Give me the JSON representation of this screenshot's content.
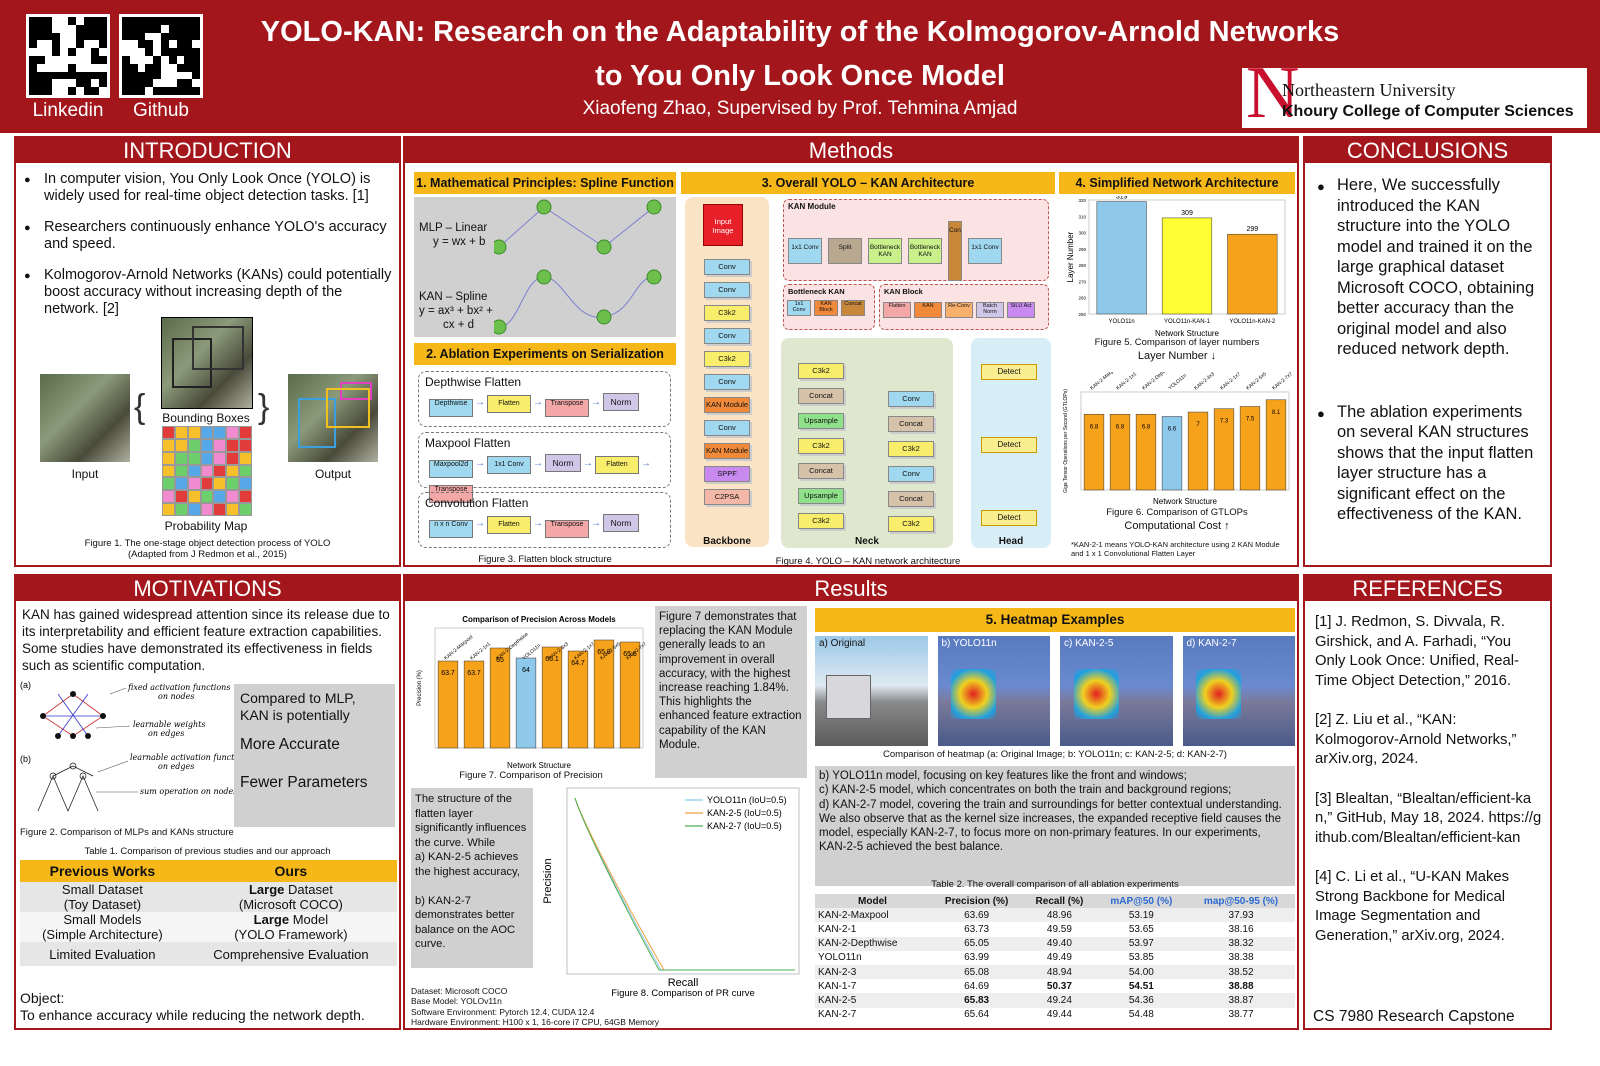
{
  "header": {
    "title_line1": "YOLO-KAN: Research on the Adaptability of the Kolmogorov-Arnold Networks",
    "title_line2": "to You Only Look Once Model",
    "author": "Xiaofeng Zhao, Supervised by Prof. Tehmina Amjad",
    "qr1_label": "Linkedin",
    "qr2_label": "Github",
    "uni_name": "Northeastern University",
    "college": "Khoury College of Computer Sciences",
    "logo_letter": "N"
  },
  "intro": {
    "heading": "INTRODUCTION",
    "bullets": [
      "In computer vision, You Only Look Once (YOLO) is widely used for real-time object detection tasks. [1]",
      "Researchers continuously enhance YOLO's accuracy and speed.",
      "Kolmogorov-Arnold Networks (KANs) could potentially boost accuracy without increasing depth of the network. [2]"
    ],
    "fig_input": "Input",
    "fig_bbox": "Bounding Boxes",
    "fig_output": "Output",
    "fig_prob": "Probability Map",
    "caption1": "Figure 1. The one-stage object detection process of YOLO",
    "caption2": "(Adapted from J Redmon et al., 2015)"
  },
  "methods": {
    "heading": "Methods",
    "s1": "1. Mathematical Principles: Spline Function",
    "mlp1": "MLP – Linear",
    "mlp2": "y = wx + b",
    "kan1": "KAN – Spline",
    "kan2": "y = ax³ + bx² +",
    "kan3": "cx + d",
    "s2": "2. Ablation Experiments on Serialization",
    "f1": "Depthwise Flatten",
    "f2": "Maxpool Flatten",
    "f3": "Convolution Flatten",
    "f1chips": [
      "Depthwise",
      "Flatten",
      "Transpose",
      "Norm"
    ],
    "f2chips": [
      "Maxpool2d",
      "1x1 Conv",
      "Norm",
      "Flatten",
      "Transpose"
    ],
    "f3chips": [
      "n x n Conv",
      "Flatten",
      "Transpose",
      "Norm"
    ],
    "fig3": "Figure 3. Flatten block structure",
    "s3": "3. Overall YOLO – KAN Architecture",
    "kan_module": "KAN Module",
    "bottleneck_kan": "Bottleneck KAN",
    "kan_block": "KAN Block",
    "backbone": "Backbone",
    "neck": "Neck",
    "head": "Head",
    "input_image": "Input Image",
    "bb_chips": [
      "Conv",
      "Conv",
      "C3k2",
      "Conv",
      "C3k2",
      "Conv",
      "KAN Module",
      "Conv",
      "KAN Module",
      "SPPF",
      "C2PSA"
    ],
    "neck1": [
      "C3k2",
      "Concat",
      "Upsample",
      "C3k2",
      "Concat",
      "Upsample",
      "C3k2"
    ],
    "neck2": [
      "Conv",
      "Concat",
      "C3k2",
      "Conv",
      "Concat",
      "C3k2"
    ],
    "detect": "Detect",
    "kan_chips": [
      "1x1 Conv",
      "Split",
      "Bottleneck KAN",
      "Bottleneck KAN",
      "Concat",
      "1x1 Conv"
    ],
    "bkan_chips": [
      "1x1 Conv",
      "KAN Block",
      "Concat"
    ],
    "kblock_chips": [
      "Flatten",
      "KAN",
      "Re-Conv",
      "Batch Norm",
      "SiLU Act"
    ],
    "fig4": "Figure 4. YOLO – KAN network architecture",
    "s4": "4. Simplified Network Architecture",
    "fig5": "Figure 5. Comparison of layer numbers",
    "fig5b": "Layer Number ↓",
    "fig6": "Figure 6. Comparison of GTLOPs",
    "fig6b": "Computational Cost ↑",
    "xlab": "Network Structure",
    "ylab5": "Layer Number",
    "ylab6": "Giga Tensor Operations per Second (GTLOPs)",
    "note1": "*KAN-2-1 means YOLO-KAN architecture using 2 KAN Module",
    "note2": "and 1 x 1 Convolutional Flatten Layer"
  },
  "conclusions": {
    "heading": "CONCLUSIONS",
    "b1": "Here, We successfully introduced the KAN structure into the YOLO model and trained it on the large graphical dataset Microsoft COCO, obtaining better accuracy than the original model and also reduced network depth.",
    "b2": "The ablation experiments on several KAN structures shows that the input flatten layer structure has a significant effect on the effectiveness of the KAN."
  },
  "motivations": {
    "heading": "MOTIVATIONS",
    "text": "KAN has gained widespread attention since its release due to its interpretability and efficient feature extraction capabilities. Some studies have demonstrated its effectiveness in fields such as scientific computation.",
    "a": "(a)",
    "b": "(b)",
    "fa1": "fixed activation functions",
    "fa2": "on nodes",
    "lw1": "learnable weights",
    "lw2": "on edges",
    "la1": "learnable activation functions",
    "la2": "on edges",
    "so": "sum operation on nodes",
    "compare1": "Compared to MLP,",
    "compare2": "KAN is potentially",
    "compare3": "More Accurate",
    "compare4": "Fewer Parameters",
    "fig2": "Figure 2. Comparison of MLPs and KANs structure",
    "table1cap": "Table 1. Comparison of previous studies and our approach",
    "th": [
      "Previous Works",
      "Ours"
    ],
    "rows": [
      [
        "Small Dataset",
        "(Toy Dataset)",
        "Large",
        "Dataset",
        "(Microsoft COCO)"
      ],
      [
        "Small Models",
        "(Simple Architecture)",
        "Large",
        "Model",
        "(YOLO Framework)"
      ],
      [
        "Limited Evaluation",
        "",
        "",
        "Comprehensive Evaluation",
        ""
      ]
    ],
    "object": "Object:",
    "object_text": "To enhance accuracy while reducing the network depth."
  },
  "results": {
    "heading": "Results",
    "fig7title": "Comparison of Precision Across Models",
    "fig7": "Figure 7. Comparison of Precision",
    "fig7text": "Figure 7 demonstrates that replacing the KAN Module generally leads to an improvement in overall accuracy, with the highest increase reaching 1.84%. This highlights the enhanced feature extraction capability of the KAN Module.",
    "ylab7": "Precision (%)",
    "xlab7": "Network Structure",
    "pr_text": "The structure of the flatten layer significantly influences the curve. While\na) KAN-2-5 achieves the highest accuracy,\n\nb) KAN-2-7 demonstrates better balance on the AOC curve.",
    "pr_legend": [
      "YOLO11n (IoU=0.5)",
      "KAN-2-5 (IoU=0.5)",
      "KAN-2-7 (IoU=0.5)"
    ],
    "pr_x": "Recall",
    "pr_y": "Precision",
    "fig8": "Figure 8. Comparison of PR curve",
    "env1": "Dataset: Microsoft COCO",
    "env2": "Base Model: YOLOv11n",
    "env3": "Software Environment: Pytorch 12.4, CUDA 12.4",
    "env4": "Hardware Environment: H100 x 1, 16-core i7 CPU, 64GB Memory",
    "s5": "5. Heatmap Examples",
    "hm": [
      "a) Original",
      "b) YOLO11n",
      "c) KAN-2-5",
      "d) KAN-2-7"
    ],
    "hmcap": "Comparison of heatmap (a: Original Image; b: YOLO11n; c: KAN-2-5; d: KAN-2-7)",
    "hmtext": "b) YOLO11n model, focusing on key features like the front and windows;\nc) KAN-2-5 model, which concentrates on both the train and background regions;\nd) KAN-2-7 model, covering the train and surroundings for better contextual understanding.\nWe also observe that as the kernel size increases, the expanded receptive field causes the model, especially KAN-2-7, to focus more on non-primary features. In our experiments, KAN-2-5 achieved the best balance.",
    "table2cap": "Table 2. The overall comparison of all ablation experiments",
    "t2head": [
      "Model",
      "Precision (%)",
      "Recall (%)",
      "mAP@50 (%)",
      "map@50-95 (%)"
    ],
    "t2rows": [
      [
        "KAN-2-Maxpool",
        "63.69",
        "48.96",
        "53.19",
        "37.93"
      ],
      [
        "KAN-2-1",
        "63.73",
        "49.59",
        "53.65",
        "38.16"
      ],
      [
        "KAN-2-Depthwise",
        "65.05",
        "49.40",
        "53.97",
        "38.32"
      ],
      [
        "YOLO11n",
        "63.99",
        "49.49",
        "53.85",
        "38.38"
      ],
      [
        "KAN-2-3",
        "65.08",
        "48.94",
        "54.00",
        "38.52"
      ],
      [
        "KAN-1-7",
        "64.69",
        "50.37",
        "54.51",
        "38.88"
      ],
      [
        "KAN-2-5",
        "65.83",
        "49.24",
        "54.36",
        "38.87"
      ],
      [
        "KAN-2-7",
        "65.64",
        "49.44",
        "54.48",
        "38.77"
      ]
    ]
  },
  "references": {
    "heading": "REFERENCES",
    "r": [
      "[1] J. Redmon, S. Divvala, R. Girshick, and A. Farhadi, “You Only Look Once: Unified, Real-Time Object Detection,” 2016.",
      "[2] Z. Liu et al., “KAN: Kolmogorov-Arnold Networks,” arXiv.org, 2024.",
      "[3] Blealtan, “Blealtan/efficient-kan,” GitHub, May 18, 2024. https://github.com/Blealtan/efficient-kan",
      "[4] C. Li et al., “U-KAN Makes Strong Backbone for Medical Image Segmentation and Generation,” arXiv.org, 2024."
    ],
    "course": "CS 7980 Research Capstone"
  },
  "chart_data": [
    {
      "type": "bar",
      "title": "",
      "categories": [
        "YOLO11n",
        "YOLO11n-KAN-1",
        "YOLO11n-KAN-2"
      ],
      "values": [
        319,
        309,
        299
      ],
      "colors": [
        "#8ec9ec",
        "#ffff33",
        "#f7a21b"
      ],
      "xlabel": "Network Structure",
      "ylabel": "Layer Number",
      "ylim": [
        250,
        320
      ]
    },
    {
      "type": "bar",
      "title": "",
      "categories": [
        "KAN-2-Maxpool",
        "KAN-2-1x1",
        "KAN-2-Depthwise",
        "YOLO11n",
        "KAN-2-3x3",
        "KAN-2-1x7",
        "KAN-2-5x5",
        "KAN-2-7x7"
      ],
      "values": [
        6.8,
        6.8,
        6.8,
        6.6,
        7.0,
        7.3,
        7.5,
        8.1
      ],
      "xlabel": "Network Structure",
      "ylabel": "Giga Tensor Operations per Second (GTLOPs)"
    },
    {
      "type": "bar",
      "title": "Comparison of Precision Across Models",
      "categories": [
        "KAN-2-Maxpool",
        "KAN-2-1x1",
        "KAN-2-Depthwise",
        "YOLO11n",
        "KAN-2-3x3",
        "KAN-2-1x7",
        "KAN-2-5x5",
        "KAN-2-7x7"
      ],
      "values": [
        63.7,
        63.7,
        65.0,
        64.0,
        65.1,
        64.7,
        65.8,
        65.6
      ],
      "xlabel": "Network Structure",
      "ylabel": "Precision (%)"
    },
    {
      "type": "line",
      "title": "",
      "series": [
        {
          "name": "YOLO11n (IoU=0.5)",
          "color": "#8ec9ec"
        },
        {
          "name": "KAN-2-5 (IoU=0.5)",
          "color": "#f0a040"
        },
        {
          "name": "KAN-2-7 (IoU=0.5)",
          "color": "#4caf50"
        }
      ],
      "xlabel": "Recall",
      "ylabel": "Precision"
    }
  ]
}
